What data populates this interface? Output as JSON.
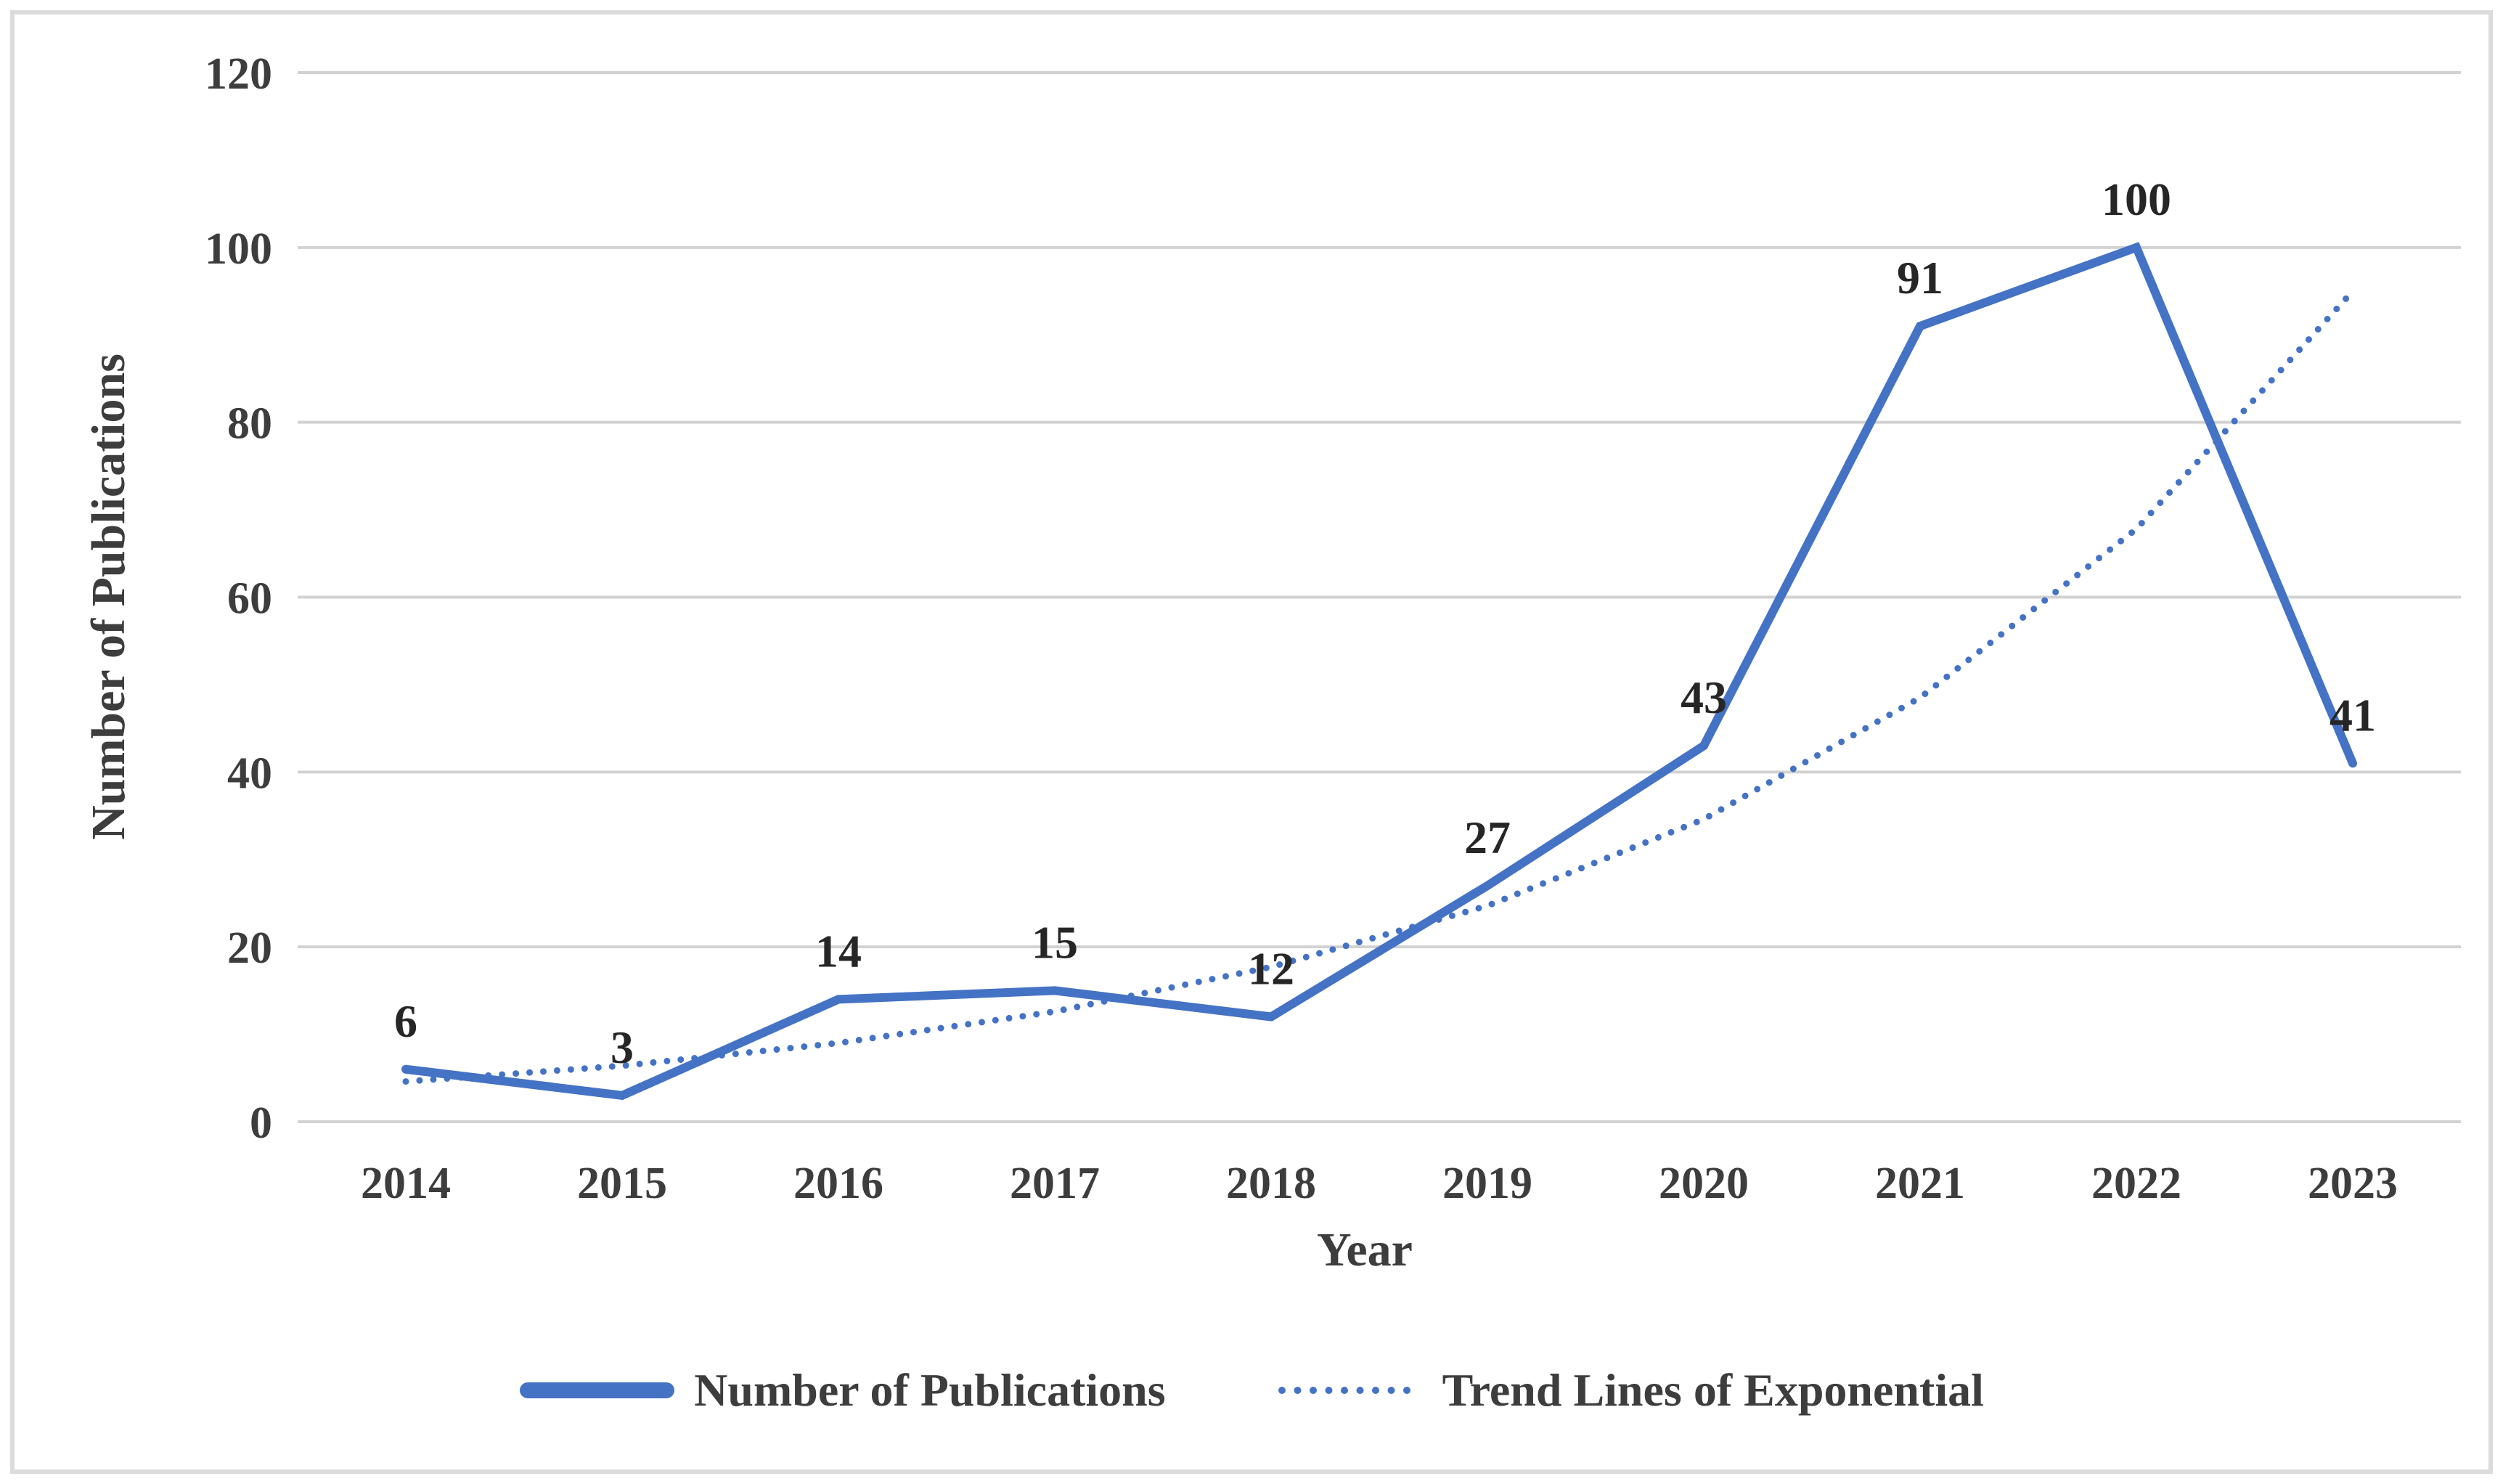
{
  "chart_data": {
    "type": "line",
    "categories": [
      "2014",
      "2015",
      "2016",
      "2017",
      "2018",
      "2019",
      "2020",
      "2021",
      "2022",
      "2023"
    ],
    "xlabel": "Year",
    "ylabel": "Number of Publications",
    "ylim": [
      0,
      120
    ],
    "yticks": [
      0,
      20,
      40,
      60,
      80,
      100,
      120
    ],
    "grid": "horizontal",
    "legend_position": "bottom",
    "series": [
      {
        "name": "Number of Publications",
        "style": "solid",
        "color": "#4472C4",
        "values": [
          6,
          3,
          14,
          15,
          12,
          27,
          43,
          91,
          100,
          41
        ],
        "show_data_labels": true
      },
      {
        "name": "Trend Lines of Exponential",
        "style": "dotted",
        "color": "#4472C4",
        "values": [
          4.6,
          6.4,
          9,
          12.6,
          17.7,
          24.7,
          34.6,
          48.5,
          67.8,
          95
        ],
        "show_data_labels": false
      }
    ],
    "colors": {
      "gridline": "#d2d2d2",
      "axis_text": "#3d3d3d",
      "data_label": "#262626",
      "frame_border": "#dbdbdb",
      "background": "#ffffff"
    }
  }
}
